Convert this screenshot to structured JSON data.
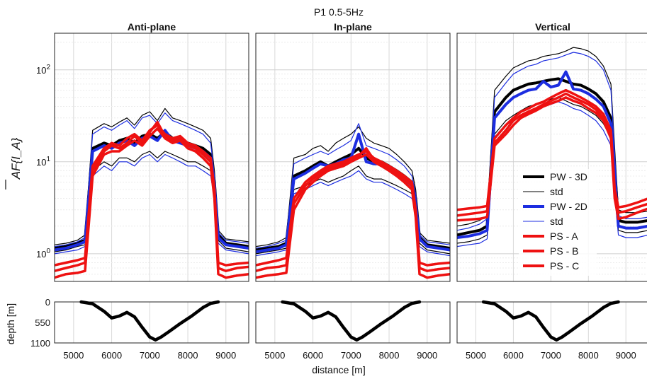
{
  "figure_title": "P1  0.5-5Hz",
  "chart_data": {
    "type": "line",
    "panel_titles": [
      "Anti-plane",
      "In-plane",
      "Vertical"
    ],
    "top_ylabel": "AF{I_A}",
    "top_yscale": "log",
    "top_ylim": [
      0.5,
      250
    ],
    "top_yticks": [
      {
        "value": 1,
        "base": "10",
        "exp": "0"
      },
      {
        "value": 10,
        "base": "10",
        "exp": "1"
      },
      {
        "value": 100,
        "base": "10",
        "exp": "2"
      }
    ],
    "xlabel": "distance [m]",
    "xlim": [
      4500,
      9600
    ],
    "xticks": [
      "5000",
      "6000",
      "7000",
      "8000",
      "9000"
    ],
    "grid": true,
    "legend": {
      "panel": "Vertical",
      "placement": "bottom-right",
      "entries": [
        {
          "label": "PW - 3D",
          "color": "#000000",
          "width": 4
        },
        {
          "label": "std",
          "color": "#000000",
          "width": 1
        },
        {
          "label": "PW - 2D",
          "color": "#1c2de0",
          "width": 4
        },
        {
          "label": "std",
          "color": "#1c2de0",
          "width": 1
        },
        {
          "label": "PS - A",
          "color": "#ee1111",
          "width": 4
        },
        {
          "label": "PS - B",
          "color": "#ee1111",
          "width": 4
        },
        {
          "label": "PS - C",
          "color": "#ee1111",
          "width": 4
        }
      ]
    },
    "amplification": {
      "x": [
        4500,
        4800,
        5100,
        5300,
        5500,
        5800,
        6000,
        6200,
        6400,
        6600,
        6800,
        7000,
        7200,
        7400,
        7600,
        7800,
        8000,
        8200,
        8400,
        8600,
        8700,
        8800,
        9000,
        9300,
        9600
      ],
      "panels": [
        {
          "name": "Anti-plane",
          "series": [
            {
              "name": "PW - 3D",
              "values": [
                1.15,
                1.2,
                1.3,
                1.4,
                14,
                16,
                15,
                17,
                18,
                16,
                19,
                20,
                18,
                21,
                18,
                17,
                16,
                15,
                14,
                12,
                6,
                1.6,
                1.3,
                1.25,
                1.2
              ]
            },
            {
              "name": "std",
              "values": [
                1.25,
                1.3,
                1.4,
                1.6,
                22,
                26,
                24,
                27,
                30,
                25,
                32,
                35,
                28,
                38,
                30,
                28,
                26,
                24,
                22,
                18,
                8,
                1.8,
                1.45,
                1.4,
                1.35
              ]
            },
            {
              "name": "std",
              "values": [
                1.05,
                1.1,
                1.2,
                1.25,
                8,
                10,
                9,
                11,
                11,
                10,
                12,
                13,
                11,
                13,
                12,
                11,
                10,
                10,
                9,
                8,
                4.5,
                1.4,
                1.15,
                1.1,
                1.05
              ]
            },
            {
              "name": "PW - 2D",
              "values": [
                1.1,
                1.15,
                1.25,
                1.35,
                13,
                15,
                14,
                16,
                17,
                15,
                18,
                19,
                17,
                22,
                17,
                16,
                15,
                14,
                13,
                11,
                5.5,
                1.5,
                1.25,
                1.2,
                1.15
              ]
            },
            {
              "name": "std",
              "values": [
                1.2,
                1.25,
                1.35,
                1.5,
                20,
                24,
                22,
                25,
                28,
                23,
                30,
                32,
                26,
                34,
                28,
                26,
                24,
                22,
                20,
                16,
                7,
                1.7,
                1.4,
                1.35,
                1.3
              ]
            },
            {
              "name": "std",
              "values": [
                1.0,
                1.05,
                1.1,
                1.2,
                7,
                9,
                8,
                10,
                10,
                9,
                11,
                12,
                10,
                12,
                11,
                10,
                9,
                9,
                8,
                7,
                4,
                1.3,
                1.1,
                1.05,
                1.0
              ]
            },
            {
              "name": "PS - A",
              "values": [
                0.75,
                0.8,
                0.85,
                0.9,
                9,
                14,
                16,
                15,
                18,
                20,
                17,
                22,
                25,
                20,
                18,
                19,
                16,
                15,
                13,
                11,
                5,
                0.8,
                0.75,
                0.78,
                0.8
              ]
            },
            {
              "name": "PS - B",
              "values": [
                0.65,
                0.7,
                0.75,
                0.8,
                8,
                13,
                15,
                14,
                16,
                19,
                16,
                21,
                27,
                19,
                17,
                18,
                15,
                14,
                12,
                10,
                4.5,
                0.7,
                0.65,
                0.7,
                0.72
              ]
            },
            {
              "name": "PS - C",
              "values": [
                0.55,
                0.6,
                0.62,
                0.65,
                7,
                12,
                13,
                13,
                15,
                17,
                15,
                19,
                23,
                18,
                16,
                17,
                14,
                13,
                11,
                9,
                4,
                0.6,
                0.55,
                0.58,
                0.6
              ]
            }
          ]
        },
        {
          "name": "In-plane",
          "series": [
            {
              "name": "PW - 3D",
              "values": [
                1.1,
                1.15,
                1.2,
                1.3,
                7,
                8,
                9,
                10,
                9,
                10,
                11,
                12,
                14,
                11,
                10,
                10,
                9,
                8,
                7,
                6,
                4,
                1.5,
                1.25,
                1.2,
                1.15
              ]
            },
            {
              "name": "std",
              "values": [
                1.2,
                1.25,
                1.35,
                1.5,
                11,
                12,
                14,
                15,
                13,
                16,
                18,
                20,
                24,
                18,
                16,
                15,
                14,
                12,
                10,
                8,
                5,
                1.7,
                1.4,
                1.35,
                1.3
              ]
            },
            {
              "name": "std",
              "values": [
                1.0,
                1.05,
                1.1,
                1.15,
                5,
                5.5,
                6,
                6.5,
                6,
                6.5,
                7,
                8,
                9,
                7,
                6.5,
                6.5,
                6,
                5.5,
                5,
                4.5,
                3,
                1.3,
                1.1,
                1.05,
                1.0
              ]
            },
            {
              "name": "PW - 2D",
              "values": [
                1.05,
                1.1,
                1.15,
                1.25,
                6.5,
                7.5,
                8.5,
                9.5,
                9,
                9.5,
                10.5,
                11,
                20,
                10,
                9.5,
                9.5,
                8.5,
                7.5,
                6.5,
                5.5,
                3.5,
                1.45,
                1.2,
                1.15,
                1.1
              ]
            },
            {
              "name": "std",
              "values": [
                1.15,
                1.2,
                1.3,
                1.4,
                9.5,
                11,
                12,
                13,
                12,
                13.5,
                15,
                17,
                26,
                15,
                14,
                13,
                12,
                10.5,
                9,
                7,
                4.5,
                1.6,
                1.35,
                1.3,
                1.25
              ]
            },
            {
              "name": "std",
              "values": [
                0.95,
                1.0,
                1.05,
                1.1,
                4.5,
                5,
                5.5,
                6,
                5.5,
                6,
                6.5,
                7,
                8,
                6.5,
                6,
                6,
                5.5,
                5,
                4.5,
                4,
                2.8,
                1.2,
                1.05,
                1.0,
                0.95
              ]
            },
            {
              "name": "PS - A",
              "values": [
                0.75,
                0.8,
                0.85,
                0.9,
                4,
                6,
                7,
                8,
                9,
                9.5,
                10,
                11,
                12,
                13,
                11,
                10,
                9,
                8,
                7,
                6,
                3,
                0.8,
                0.75,
                0.78,
                0.8
              ]
            },
            {
              "name": "PS - B",
              "values": [
                0.65,
                0.7,
                0.72,
                0.75,
                3.5,
                5.5,
                6.5,
                7.5,
                8.5,
                9,
                9.5,
                10.5,
                11.5,
                14,
                10.5,
                9.5,
                8.5,
                7.5,
                6.5,
                5.5,
                2.8,
                0.7,
                0.65,
                0.68,
                0.7
              ]
            },
            {
              "name": "PS - C",
              "values": [
                0.55,
                0.58,
                0.6,
                0.62,
                3,
                5,
                6,
                7,
                8,
                8.5,
                9,
                10,
                11,
                12,
                10,
                9,
                8,
                7,
                6,
                5,
                2.5,
                0.6,
                0.55,
                0.58,
                0.6
              ]
            }
          ]
        },
        {
          "name": "Vertical",
          "series": [
            {
              "name": "PW - 3D",
              "values": [
                1.6,
                1.7,
                1.8,
                2.0,
                35,
                50,
                60,
                65,
                70,
                72,
                75,
                78,
                80,
                75,
                70,
                68,
                62,
                55,
                45,
                30,
                8,
                2.3,
                2.2,
                2.2,
                2.3
              ]
            },
            {
              "name": "std",
              "values": [
                2.0,
                2.1,
                2.3,
                2.6,
                60,
                85,
                105,
                115,
                125,
                130,
                140,
                145,
                150,
                160,
                175,
                170,
                160,
                140,
                110,
                70,
                14,
                3.0,
                2.8,
                2.8,
                2.9
              ]
            },
            {
              "name": "std",
              "values": [
                1.3,
                1.35,
                1.45,
                1.6,
                20,
                28,
                32,
                36,
                40,
                42,
                45,
                48,
                50,
                46,
                42,
                40,
                36,
                32,
                26,
                18,
                5,
                1.8,
                1.7,
                1.7,
                1.8
              ]
            },
            {
              "name": "PW - 2D",
              "values": [
                1.5,
                1.55,
                1.65,
                1.8,
                30,
                42,
                50,
                55,
                60,
                62,
                75,
                65,
                68,
                95,
                62,
                60,
                55,
                48,
                40,
                26,
                7,
                2.0,
                1.9,
                1.9,
                2.0
              ]
            },
            {
              "name": "std",
              "values": [
                1.8,
                1.9,
                2.1,
                2.4,
                50,
                72,
                90,
                100,
                110,
                115,
                125,
                130,
                135,
                145,
                155,
                150,
                140,
                125,
                100,
                60,
                12,
                2.6,
                2.4,
                2.4,
                2.5
              ]
            },
            {
              "name": "std",
              "values": [
                1.2,
                1.25,
                1.3,
                1.45,
                18,
                25,
                28,
                32,
                35,
                38,
                40,
                42,
                45,
                42,
                38,
                36,
                32,
                28,
                22,
                15,
                4.5,
                1.6,
                1.5,
                1.5,
                1.6
              ]
            },
            {
              "name": "PS - A",
              "values": [
                3.0,
                3.1,
                3.2,
                3.3,
                18,
                25,
                30,
                35,
                38,
                42,
                45,
                50,
                55,
                60,
                55,
                50,
                45,
                40,
                33,
                22,
                5,
                3.2,
                3.3,
                3.6,
                4.0
              ]
            },
            {
              "name": "PS - B",
              "values": [
                2.6,
                2.7,
                2.8,
                2.9,
                16,
                22,
                28,
                32,
                35,
                38,
                42,
                46,
                50,
                55,
                50,
                46,
                42,
                37,
                30,
                20,
                4.5,
                2.8,
                2.9,
                3.2,
                3.5
              ]
            },
            {
              "name": "PS - C",
              "values": [
                2.3,
                2.35,
                2.4,
                2.5,
                15,
                20,
                25,
                30,
                33,
                36,
                40,
                43,
                46,
                50,
                46,
                43,
                38,
                34,
                28,
                18,
                4,
                2.4,
                2.5,
                2.8,
                3.1
              ]
            }
          ]
        }
      ]
    },
    "depth_profile": {
      "ylabel": "depth [m]",
      "yticks": [
        "0",
        "550",
        "1100"
      ],
      "ylim": [
        0,
        1100
      ],
      "x": [
        5200,
        5500,
        5800,
        6000,
        6200,
        6400,
        6600,
        6800,
        7000,
        7150,
        7300,
        7500,
        7800,
        8100,
        8400,
        8600,
        8800
      ],
      "depth": [
        0,
        50,
        250,
        430,
        380,
        280,
        400,
        680,
        940,
        1020,
        940,
        800,
        580,
        380,
        150,
        40,
        0
      ]
    }
  }
}
